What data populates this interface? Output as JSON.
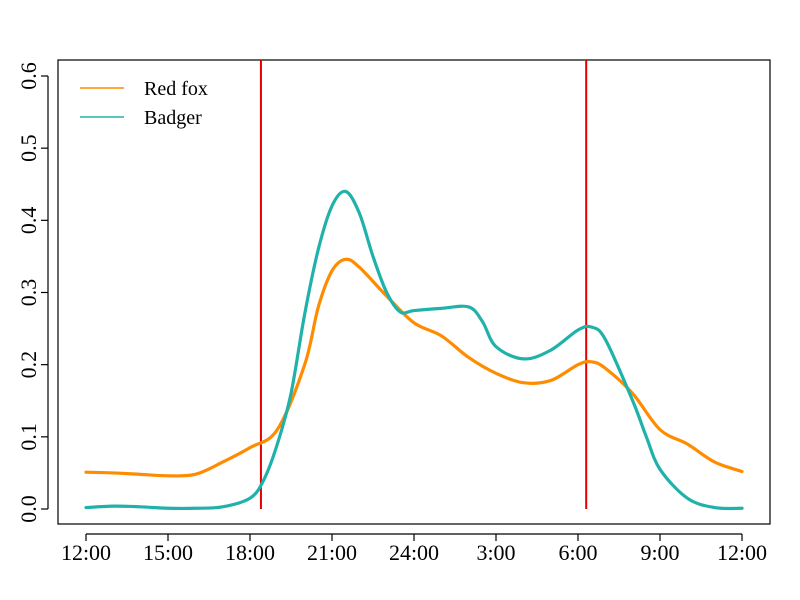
{
  "chart_data": {
    "type": "line",
    "title": "",
    "xlabel": "",
    "ylabel": "",
    "xlim": [
      0,
      24
    ],
    "ylim": [
      0,
      0.6
    ],
    "x_ticks": [
      {
        "value": 0,
        "label": "12:00"
      },
      {
        "value": 3,
        "label": "15:00"
      },
      {
        "value": 6,
        "label": "18:00"
      },
      {
        "value": 9,
        "label": "21:00"
      },
      {
        "value": 12,
        "label": "24:00"
      },
      {
        "value": 15,
        "label": "3:00"
      },
      {
        "value": 18,
        "label": "6:00"
      },
      {
        "value": 21,
        "label": "9:00"
      },
      {
        "value": 24,
        "label": "12:00"
      }
    ],
    "y_ticks": [
      {
        "value": 0.0,
        "label": "0.0"
      },
      {
        "value": 0.1,
        "label": "0.1"
      },
      {
        "value": 0.2,
        "label": "0.2"
      },
      {
        "value": 0.3,
        "label": "0.3"
      },
      {
        "value": 0.4,
        "label": "0.4"
      },
      {
        "value": 0.5,
        "label": "0.5"
      },
      {
        "value": 0.6,
        "label": "0.6"
      }
    ],
    "grid": false,
    "legend_position": "top-left",
    "vertical_lines": [
      {
        "x": 6.4,
        "color": "#e00000"
      },
      {
        "x": 18.3,
        "color": "#e00000"
      }
    ],
    "series": [
      {
        "name": "Red fox",
        "color": "#ff8c00",
        "points": [
          [
            0,
            0.051
          ],
          [
            1,
            0.05
          ],
          [
            2,
            0.048
          ],
          [
            3,
            0.046
          ],
          [
            4,
            0.048
          ],
          [
            5,
            0.065
          ],
          [
            6,
            0.085
          ],
          [
            7,
            0.11
          ],
          [
            8,
            0.2
          ],
          [
            8.5,
            0.28
          ],
          [
            9,
            0.33
          ],
          [
            9.5,
            0.346
          ],
          [
            10,
            0.335
          ],
          [
            11,
            0.295
          ],
          [
            12,
            0.258
          ],
          [
            13,
            0.24
          ],
          [
            14,
            0.21
          ],
          [
            15,
            0.188
          ],
          [
            16,
            0.175
          ],
          [
            17,
            0.178
          ],
          [
            18,
            0.2
          ],
          [
            18.5,
            0.204
          ],
          [
            19,
            0.195
          ],
          [
            20,
            0.16
          ],
          [
            21,
            0.11
          ],
          [
            22,
            0.09
          ],
          [
            23,
            0.065
          ],
          [
            24,
            0.052
          ]
        ]
      },
      {
        "name": "Badger",
        "color": "#20b2aa",
        "points": [
          [
            0,
            0.002
          ],
          [
            1,
            0.004
          ],
          [
            2,
            0.003
          ],
          [
            3,
            0.001
          ],
          [
            4,
            0.001
          ],
          [
            5,
            0.003
          ],
          [
            6,
            0.015
          ],
          [
            6.5,
            0.04
          ],
          [
            7,
            0.09
          ],
          [
            7.5,
            0.16
          ],
          [
            8,
            0.27
          ],
          [
            8.5,
            0.36
          ],
          [
            9,
            0.42
          ],
          [
            9.5,
            0.44
          ],
          [
            10,
            0.41
          ],
          [
            10.5,
            0.35
          ],
          [
            11,
            0.3
          ],
          [
            11.5,
            0.273
          ],
          [
            12,
            0.275
          ],
          [
            13,
            0.278
          ],
          [
            14,
            0.28
          ],
          [
            14.5,
            0.26
          ],
          [
            15,
            0.225
          ],
          [
            16,
            0.208
          ],
          [
            17,
            0.22
          ],
          [
            18,
            0.248
          ],
          [
            18.5,
            0.252
          ],
          [
            19,
            0.235
          ],
          [
            20,
            0.15
          ],
          [
            20.5,
            0.1
          ],
          [
            21,
            0.055
          ],
          [
            22,
            0.015
          ],
          [
            23,
            0.002
          ],
          [
            24,
            0.001
          ]
        ]
      }
    ]
  }
}
